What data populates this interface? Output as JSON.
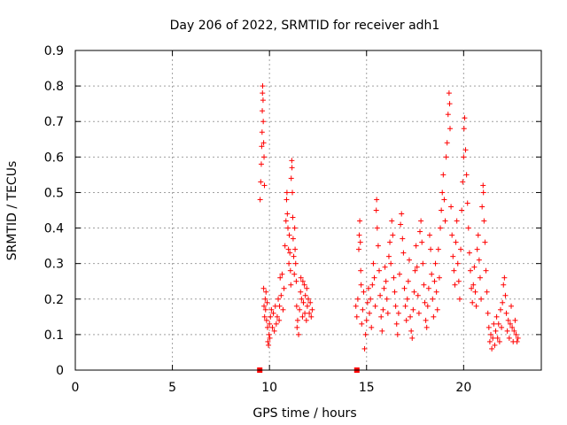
{
  "chart_data": {
    "type": "scatter",
    "title": "Day 206 of 2022, SRMTID for receiver adh1",
    "xlabel": "GPS time / hours",
    "ylabel": "SRMTID / TECUs",
    "xlim": [
      0,
      24
    ],
    "ylim": [
      0,
      0.9
    ],
    "grid": true,
    "legend": "none",
    "marker": "+",
    "color": "#ff0000",
    "x_ticks": [
      "0",
      "5",
      "10",
      "15",
      "20"
    ],
    "x_tick_values": [
      0,
      5,
      10,
      15,
      20
    ],
    "y_ticks": [
      "0",
      "0.1",
      "0.2",
      "0.3",
      "0.4",
      "0.5",
      "0.6",
      "0.7",
      "0.8",
      "0.9"
    ],
    "y_tick_values": [
      0,
      0.1,
      0.2,
      0.3,
      0.4,
      0.5,
      0.6,
      0.7,
      0.8,
      0.9
    ],
    "zero_markers": [
      9.5,
      14.5
    ],
    "series": [
      {
        "name": "SRMTID",
        "points": [
          [
            9.52,
            0.48
          ],
          [
            9.55,
            0.53
          ],
          [
            9.58,
            0.58
          ],
          [
            9.6,
            0.63
          ],
          [
            9.62,
            0.67
          ],
          [
            9.63,
            0.73
          ],
          [
            9.64,
            0.78
          ],
          [
            9.65,
            0.8
          ],
          [
            9.67,
            0.76
          ],
          [
            9.68,
            0.7
          ],
          [
            9.7,
            0.64
          ],
          [
            9.72,
            0.6
          ],
          [
            9.74,
            0.52
          ],
          [
            9.7,
            0.23
          ],
          [
            9.72,
            0.18
          ],
          [
            9.75,
            0.15
          ],
          [
            9.78,
            0.2
          ],
          [
            9.8,
            0.17
          ],
          [
            9.82,
            0.22
          ],
          [
            9.85,
            0.14
          ],
          [
            9.88,
            0.19
          ],
          [
            9.9,
            0.12
          ],
          [
            9.92,
            0.08
          ],
          [
            9.95,
            0.07
          ],
          [
            9.98,
            0.1
          ],
          [
            10.0,
            0.13
          ],
          [
            10.02,
            0.09
          ],
          [
            10.05,
            0.15
          ],
          [
            10.1,
            0.17
          ],
          [
            10.15,
            0.12
          ],
          [
            10.2,
            0.16
          ],
          [
            10.25,
            0.11
          ],
          [
            10.3,
            0.18
          ],
          [
            10.35,
            0.13
          ],
          [
            10.4,
            0.15
          ],
          [
            10.45,
            0.2
          ],
          [
            10.5,
            0.14
          ],
          [
            10.52,
            0.18
          ],
          [
            10.55,
            0.26
          ],
          [
            10.6,
            0.21
          ],
          [
            10.65,
            0.27
          ],
          [
            10.7,
            0.17
          ],
          [
            10.75,
            0.23
          ],
          [
            10.8,
            0.35
          ],
          [
            10.85,
            0.42
          ],
          [
            10.88,
            0.48
          ],
          [
            10.9,
            0.5
          ],
          [
            10.92,
            0.44
          ],
          [
            10.95,
            0.4
          ],
          [
            10.98,
            0.34
          ],
          [
            11.0,
            0.3
          ],
          [
            11.02,
            0.38
          ],
          [
            11.05,
            0.33
          ],
          [
            11.08,
            0.28
          ],
          [
            11.1,
            0.24
          ],
          [
            11.12,
            0.54
          ],
          [
            11.15,
            0.59
          ],
          [
            11.16,
            0.57
          ],
          [
            11.18,
            0.5
          ],
          [
            11.2,
            0.43
          ],
          [
            11.22,
            0.37
          ],
          [
            11.25,
            0.32
          ],
          [
            11.28,
            0.27
          ],
          [
            11.3,
            0.4
          ],
          [
            11.32,
            0.34
          ],
          [
            11.35,
            0.3
          ],
          [
            11.38,
            0.25
          ],
          [
            11.4,
            0.18
          ],
          [
            11.42,
            0.12
          ],
          [
            11.45,
            0.14
          ],
          [
            11.5,
            0.1
          ],
          [
            11.55,
            0.17
          ],
          [
            11.6,
            0.22
          ],
          [
            11.62,
            0.26
          ],
          [
            11.65,
            0.2
          ],
          [
            11.7,
            0.15
          ],
          [
            11.72,
            0.25
          ],
          [
            11.75,
            0.19
          ],
          [
            11.8,
            0.24
          ],
          [
            11.82,
            0.16
          ],
          [
            11.85,
            0.21
          ],
          [
            11.9,
            0.14
          ],
          [
            11.92,
            0.23
          ],
          [
            11.95,
            0.18
          ],
          [
            12.0,
            0.2
          ],
          [
            12.05,
            0.16
          ],
          [
            12.1,
            0.19
          ],
          [
            12.15,
            0.15
          ],
          [
            12.2,
            0.17
          ],
          [
            14.45,
            0.18
          ],
          [
            14.5,
            0.15
          ],
          [
            14.55,
            0.2
          ],
          [
            14.6,
            0.34
          ],
          [
            14.62,
            0.38
          ],
          [
            14.65,
            0.42
          ],
          [
            14.68,
            0.36
          ],
          [
            14.7,
            0.28
          ],
          [
            14.72,
            0.24
          ],
          [
            14.75,
            0.13
          ],
          [
            14.8,
            0.17
          ],
          [
            14.85,
            0.22
          ],
          [
            14.9,
            0.06
          ],
          [
            14.95,
            0.1
          ],
          [
            15.0,
            0.14
          ],
          [
            15.05,
            0.19
          ],
          [
            15.1,
            0.23
          ],
          [
            15.15,
            0.16
          ],
          [
            15.2,
            0.2
          ],
          [
            15.25,
            0.12
          ],
          [
            15.3,
            0.24
          ],
          [
            15.35,
            0.3
          ],
          [
            15.4,
            0.26
          ],
          [
            15.45,
            0.18
          ],
          [
            15.5,
            0.45
          ],
          [
            15.52,
            0.48
          ],
          [
            15.55,
            0.4
          ],
          [
            15.6,
            0.35
          ],
          [
            15.65,
            0.28
          ],
          [
            15.7,
            0.21
          ],
          [
            15.75,
            0.15
          ],
          [
            15.8,
            0.11
          ],
          [
            15.85,
            0.17
          ],
          [
            15.9,
            0.23
          ],
          [
            15.95,
            0.29
          ],
          [
            16.0,
            0.25
          ],
          [
            16.05,
            0.2
          ],
          [
            16.1,
            0.16
          ],
          [
            16.15,
            0.32
          ],
          [
            16.2,
            0.36
          ],
          [
            16.25,
            0.3
          ],
          [
            16.3,
            0.42
          ],
          [
            16.35,
            0.38
          ],
          [
            16.4,
            0.26
          ],
          [
            16.45,
            0.22
          ],
          [
            16.5,
            0.18
          ],
          [
            16.55,
            0.13
          ],
          [
            16.6,
            0.1
          ],
          [
            16.65,
            0.16
          ],
          [
            16.7,
            0.27
          ],
          [
            16.75,
            0.41
          ],
          [
            16.8,
            0.44
          ],
          [
            16.85,
            0.37
          ],
          [
            16.9,
            0.33
          ],
          [
            16.95,
            0.23
          ],
          [
            17.0,
            0.18
          ],
          [
            17.05,
            0.14
          ],
          [
            17.1,
            0.2
          ],
          [
            17.15,
            0.25
          ],
          [
            17.2,
            0.31
          ],
          [
            17.25,
            0.15
          ],
          [
            17.3,
            0.11
          ],
          [
            17.35,
            0.09
          ],
          [
            17.4,
            0.17
          ],
          [
            17.45,
            0.22
          ],
          [
            17.5,
            0.28
          ],
          [
            17.55,
            0.35
          ],
          [
            17.6,
            0.29
          ],
          [
            17.65,
            0.21
          ],
          [
            17.7,
            0.16
          ],
          [
            17.75,
            0.39
          ],
          [
            17.8,
            0.42
          ],
          [
            17.85,
            0.36
          ],
          [
            17.9,
            0.3
          ],
          [
            17.95,
            0.24
          ],
          [
            18.0,
            0.19
          ],
          [
            18.05,
            0.14
          ],
          [
            18.1,
            0.12
          ],
          [
            18.15,
            0.18
          ],
          [
            18.2,
            0.23
          ],
          [
            18.25,
            0.38
          ],
          [
            18.3,
            0.34
          ],
          [
            18.35,
            0.27
          ],
          [
            18.4,
            0.2
          ],
          [
            18.45,
            0.15
          ],
          [
            18.5,
            0.25
          ],
          [
            18.55,
            0.3
          ],
          [
            18.6,
            0.22
          ],
          [
            18.65,
            0.17
          ],
          [
            18.7,
            0.34
          ],
          [
            18.75,
            0.26
          ],
          [
            18.8,
            0.4
          ],
          [
            18.85,
            0.45
          ],
          [
            18.9,
            0.5
          ],
          [
            18.95,
            0.55
          ],
          [
            19.0,
            0.48
          ],
          [
            19.05,
            0.42
          ],
          [
            19.1,
            0.6
          ],
          [
            19.15,
            0.64
          ],
          [
            19.2,
            0.72
          ],
          [
            19.25,
            0.78
          ],
          [
            19.28,
            0.75
          ],
          [
            19.3,
            0.68
          ],
          [
            19.35,
            0.46
          ],
          [
            19.4,
            0.38
          ],
          [
            19.45,
            0.32
          ],
          [
            19.5,
            0.28
          ],
          [
            19.55,
            0.24
          ],
          [
            19.6,
            0.36
          ],
          [
            19.65,
            0.42
          ],
          [
            19.7,
            0.3
          ],
          [
            19.75,
            0.25
          ],
          [
            19.8,
            0.2
          ],
          [
            19.85,
            0.34
          ],
          [
            19.9,
            0.45
          ],
          [
            19.95,
            0.53
          ],
          [
            20.0,
            0.6
          ],
          [
            20.02,
            0.68
          ],
          [
            20.05,
            0.71
          ],
          [
            20.1,
            0.62
          ],
          [
            20.15,
            0.55
          ],
          [
            20.2,
            0.47
          ],
          [
            20.25,
            0.4
          ],
          [
            20.3,
            0.33
          ],
          [
            20.35,
            0.28
          ],
          [
            20.4,
            0.23
          ],
          [
            20.45,
            0.19
          ],
          [
            20.5,
            0.24
          ],
          [
            20.55,
            0.29
          ],
          [
            20.6,
            0.22
          ],
          [
            20.65,
            0.18
          ],
          [
            20.7,
            0.34
          ],
          [
            20.75,
            0.38
          ],
          [
            20.8,
            0.31
          ],
          [
            20.85,
            0.26
          ],
          [
            20.9,
            0.2
          ],
          [
            20.95,
            0.46
          ],
          [
            21.0,
            0.52
          ],
          [
            21.02,
            0.5
          ],
          [
            21.05,
            0.42
          ],
          [
            21.1,
            0.36
          ],
          [
            21.15,
            0.28
          ],
          [
            21.2,
            0.22
          ],
          [
            21.25,
            0.16
          ],
          [
            21.3,
            0.12
          ],
          [
            21.35,
            0.08
          ],
          [
            21.4,
            0.1
          ],
          [
            21.45,
            0.06
          ],
          [
            21.5,
            0.09
          ],
          [
            21.55,
            0.13
          ],
          [
            21.6,
            0.07
          ],
          [
            21.65,
            0.11
          ],
          [
            21.7,
            0.15
          ],
          [
            21.75,
            0.09
          ],
          [
            21.8,
            0.13
          ],
          [
            21.85,
            0.08
          ],
          [
            21.9,
            0.17
          ],
          [
            21.95,
            0.12
          ],
          [
            22.0,
            0.19
          ],
          [
            22.05,
            0.24
          ],
          [
            22.1,
            0.26
          ],
          [
            22.15,
            0.21
          ],
          [
            22.2,
            0.16
          ],
          [
            22.25,
            0.11
          ],
          [
            22.3,
            0.14
          ],
          [
            22.35,
            0.09
          ],
          [
            22.4,
            0.13
          ],
          [
            22.45,
            0.18
          ],
          [
            22.5,
            0.12
          ],
          [
            22.55,
            0.08
          ],
          [
            22.6,
            0.11
          ],
          [
            22.65,
            0.14
          ],
          [
            22.7,
            0.1
          ],
          [
            22.75,
            0.08
          ],
          [
            22.8,
            0.09
          ]
        ]
      }
    ]
  }
}
